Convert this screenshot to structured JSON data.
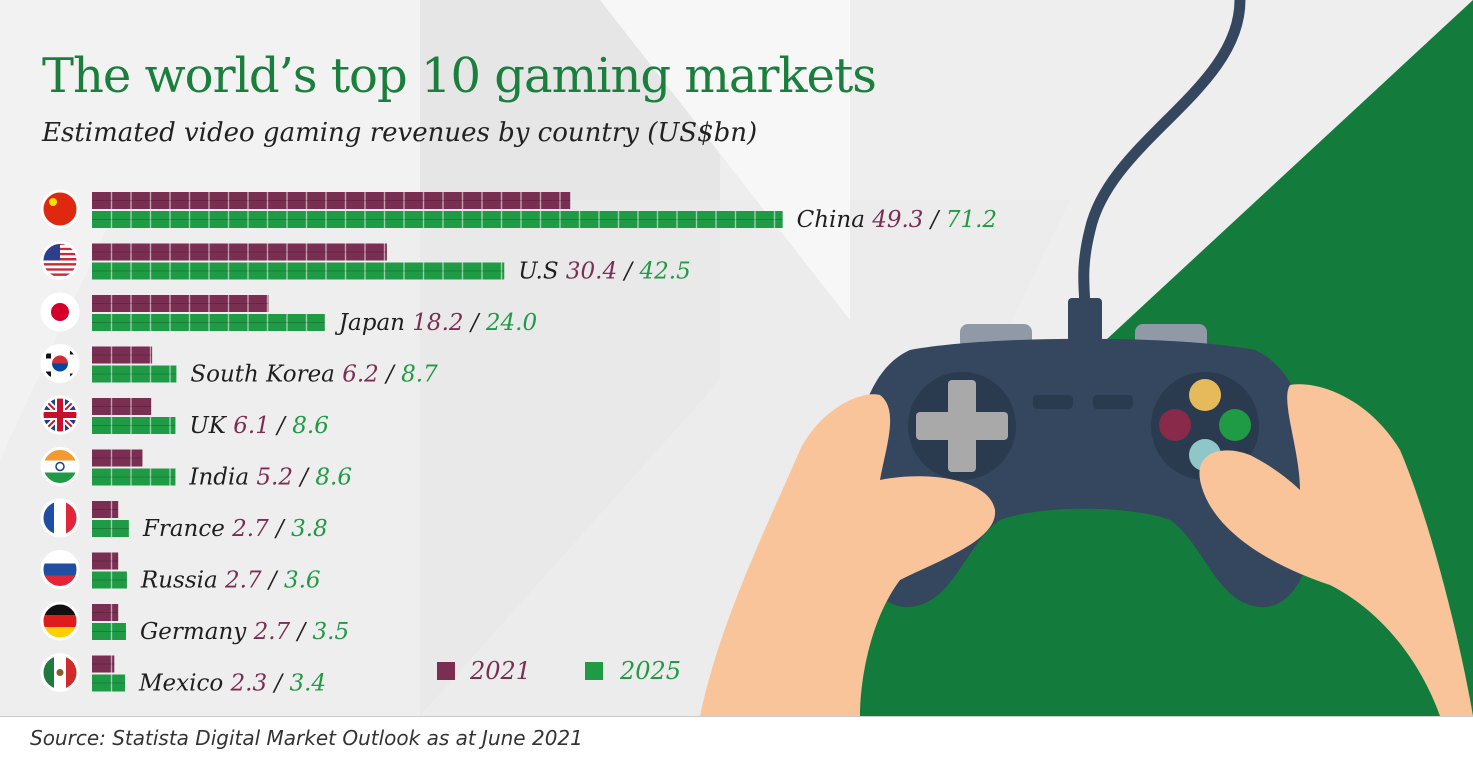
{
  "title": "The world’s top 10 gaming markets",
  "subtitle": "Estimated video gaming revenues by country (US$bn)",
  "source": "Source: Statista Digital Market Outlook as at June 2021",
  "colors": {
    "y2021": "#7a2e52",
    "y2025": "#1f9a45",
    "title": "#1a7f3c",
    "green_bg": "#137c3c",
    "controller": "#34475f",
    "skin": "#f9c49a"
  },
  "chart_data": {
    "type": "bar",
    "title": "The world’s top 10 gaming markets",
    "subtitle": "Estimated video gaming revenues by country (US$bn)",
    "categories": [
      "China",
      "U.S",
      "Japan",
      "South Korea",
      "UK",
      "India",
      "France",
      "Russia",
      "Germany",
      "Mexico"
    ],
    "flags": [
      "china-flag-icon",
      "us-flag-icon",
      "japan-flag-icon",
      "south-korea-flag-icon",
      "uk-flag-icon",
      "india-flag-icon",
      "france-flag-icon",
      "russia-flag-icon",
      "germany-flag-icon",
      "mexico-flag-icon"
    ],
    "series": [
      {
        "name": "2021",
        "values": [
          49.3,
          30.4,
          18.2,
          6.2,
          6.1,
          5.2,
          2.7,
          2.7,
          2.7,
          2.3
        ],
        "labels": [
          "49.3",
          "30.4",
          "18.2",
          "6.2",
          "6.1",
          "5.2",
          "2.7",
          "2.7",
          "2.7",
          "2.3"
        ]
      },
      {
        "name": "2025",
        "values": [
          71.2,
          42.5,
          24.0,
          8.7,
          8.6,
          8.6,
          3.8,
          3.6,
          3.5,
          3.4
        ],
        "labels": [
          "71.2",
          "42.5",
          "24.0",
          "8.7",
          "8.6",
          "8.6",
          "3.8",
          "3.6",
          "3.5",
          "3.4"
        ]
      }
    ],
    "separator": "/",
    "legend": [
      "2021",
      "2025"
    ],
    "legend_position": "bottom"
  }
}
